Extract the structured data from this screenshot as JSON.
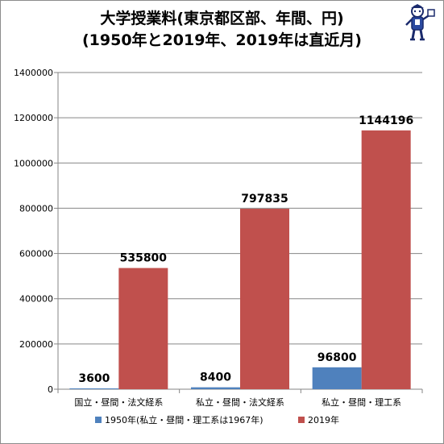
{
  "title_line1": "大学授業料(東京都区部、年間、円)",
  "title_line2": "(1950年と2019年、2019年は直近月)",
  "colors": {
    "series_1950": "#4f81bd",
    "series_2019": "#c0504d",
    "grid": "#868686",
    "axis": "#868686"
  },
  "chart_data": {
    "type": "bar",
    "title": "大学授業料(東京都区部、年間、円)",
    "subtitle": "(1950年と2019年、2019年は直近月)",
    "categories": [
      "国立・昼間・法文経系",
      "私立・昼間・法文経系",
      "私立・昼間・理工系"
    ],
    "series": [
      {
        "name": "1950年(私立・昼間・理工系は1967年)",
        "values": [
          3600,
          8400,
          96800
        ],
        "color": "#4f81bd"
      },
      {
        "name": "2019年",
        "values": [
          535800,
          797835,
          1144196
        ],
        "color": "#c0504d"
      }
    ],
    "yticks": [
      "0",
      "200000",
      "400000",
      "600000",
      "800000",
      "1000000",
      "1200000",
      "1400000"
    ],
    "ylim": [
      0,
      1400000
    ],
    "grid": true,
    "legend_position": "bottom",
    "data_labels": true
  }
}
